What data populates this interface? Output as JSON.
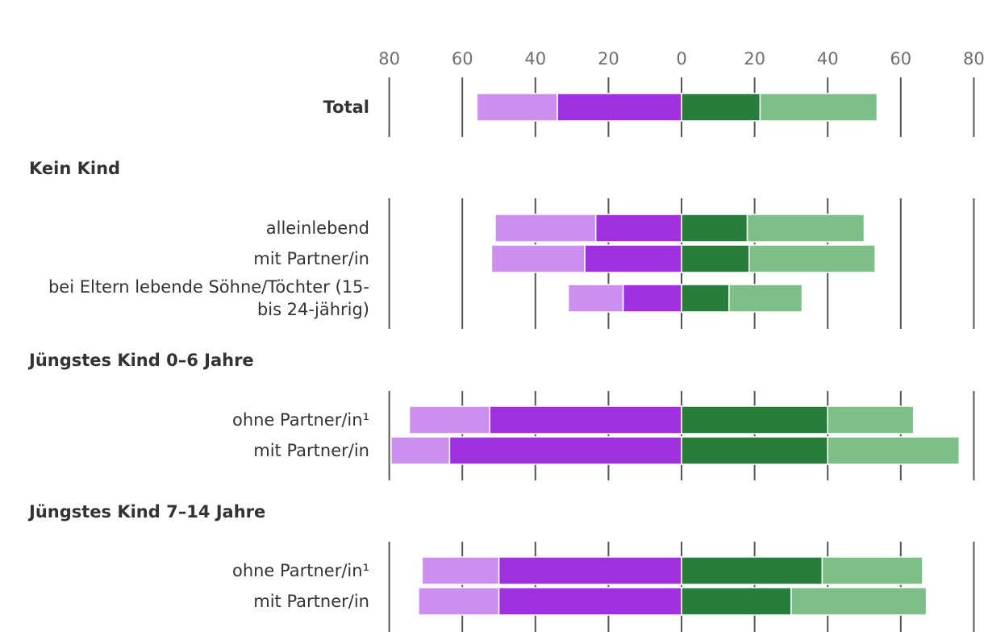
{
  "colors": {
    "left_outer": "#cc8fee",
    "left_inner": "#a02fe0",
    "right_inner": "#267d3c",
    "right_outer": "#7dbf89",
    "grid": "#555555",
    "tick_text": "#6e6e6e",
    "label_text": "#333333"
  },
  "chart_data": {
    "type": "bar",
    "orientation": "horizontal-diverging",
    "title": "",
    "xlabel": "",
    "ylabel": "",
    "xlim": [
      -80,
      80
    ],
    "x_ticks": [
      -80,
      -60,
      -40,
      -20,
      0,
      20,
      40,
      60,
      80
    ],
    "x_tick_labels": [
      "80",
      "60",
      "40",
      "20",
      "0",
      "20",
      "40",
      "60",
      "80"
    ],
    "grid": true,
    "legend": "none",
    "groups": [
      {
        "title": "",
        "rows": [
          {
            "label": [
              "Total"
            ],
            "bold": true,
            "left_inner": 34,
            "left_outer": 22,
            "right_inner": 21.5,
            "right_outer": 32
          }
        ]
      },
      {
        "title": "Kein Kind",
        "rows": [
          {
            "label": [
              "alleinlebend"
            ],
            "bold": false,
            "left_inner": 23.5,
            "left_outer": 27.5,
            "right_inner": 18,
            "right_outer": 32
          },
          {
            "label": [
              "mit Partner/in"
            ],
            "bold": false,
            "left_inner": 26.5,
            "left_outer": 25.5,
            "right_inner": 18.5,
            "right_outer": 34.5
          },
          {
            "label": [
              "bei Eltern lebende Söhne/Töchter (15-",
              "bis 24-jährig)"
            ],
            "bold": false,
            "left_inner": 16,
            "left_outer": 15,
            "right_inner": 13,
            "right_outer": 20
          }
        ]
      },
      {
        "title": "Jüngstes Kind 0–6 Jahre",
        "rows": [
          {
            "label": [
              "ohne Partner/in¹"
            ],
            "bold": false,
            "left_inner": 52.5,
            "left_outer": 22,
            "right_inner": 40,
            "right_outer": 23.5
          },
          {
            "label": [
              "mit Partner/in"
            ],
            "bold": false,
            "left_inner": 63.5,
            "left_outer": 16,
            "right_inner": 40,
            "right_outer": 36
          }
        ]
      },
      {
        "title": "Jüngstes Kind 7–14 Jahre",
        "rows": [
          {
            "label": [
              "ohne Partner/in¹"
            ],
            "bold": false,
            "left_inner": 50,
            "left_outer": 21,
            "right_inner": 38.5,
            "right_outer": 27.5
          },
          {
            "label": [
              "mit Partner/in"
            ],
            "bold": false,
            "left_inner": 50,
            "left_outer": 22,
            "right_inner": 30,
            "right_outer": 37
          }
        ]
      }
    ]
  }
}
